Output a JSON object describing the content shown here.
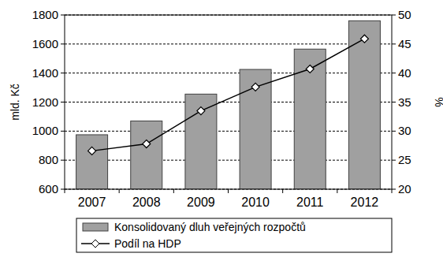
{
  "chart_data": {
    "type": "bar",
    "categories": [
      "2007",
      "2008",
      "2009",
      "2010",
      "2011",
      "2012"
    ],
    "ylabel": "mld. Kč",
    "y2label": "%",
    "ylim": [
      600,
      1800
    ],
    "yticks": [
      600,
      800,
      1000,
      1200,
      1400,
      1600,
      1800
    ],
    "y2lim": [
      20,
      50
    ],
    "y2ticks": [
      20,
      25,
      30,
      35,
      40,
      45,
      50
    ],
    "grid": true,
    "legend": "bottom",
    "series": [
      {
        "name": "Konsolidovaný dluh veřejných rozpočtů",
        "type": "bar",
        "color": "#a0a0a0",
        "values": [
          975,
          1070,
          1255,
          1425,
          1565,
          1760
        ]
      },
      {
        "name": "Podíl na HDP",
        "type": "line",
        "axis": "y2",
        "color": "#000000",
        "marker": "diamond",
        "values": [
          26.6,
          27.8,
          33.5,
          37.6,
          40.7,
          45.9
        ]
      }
    ]
  }
}
